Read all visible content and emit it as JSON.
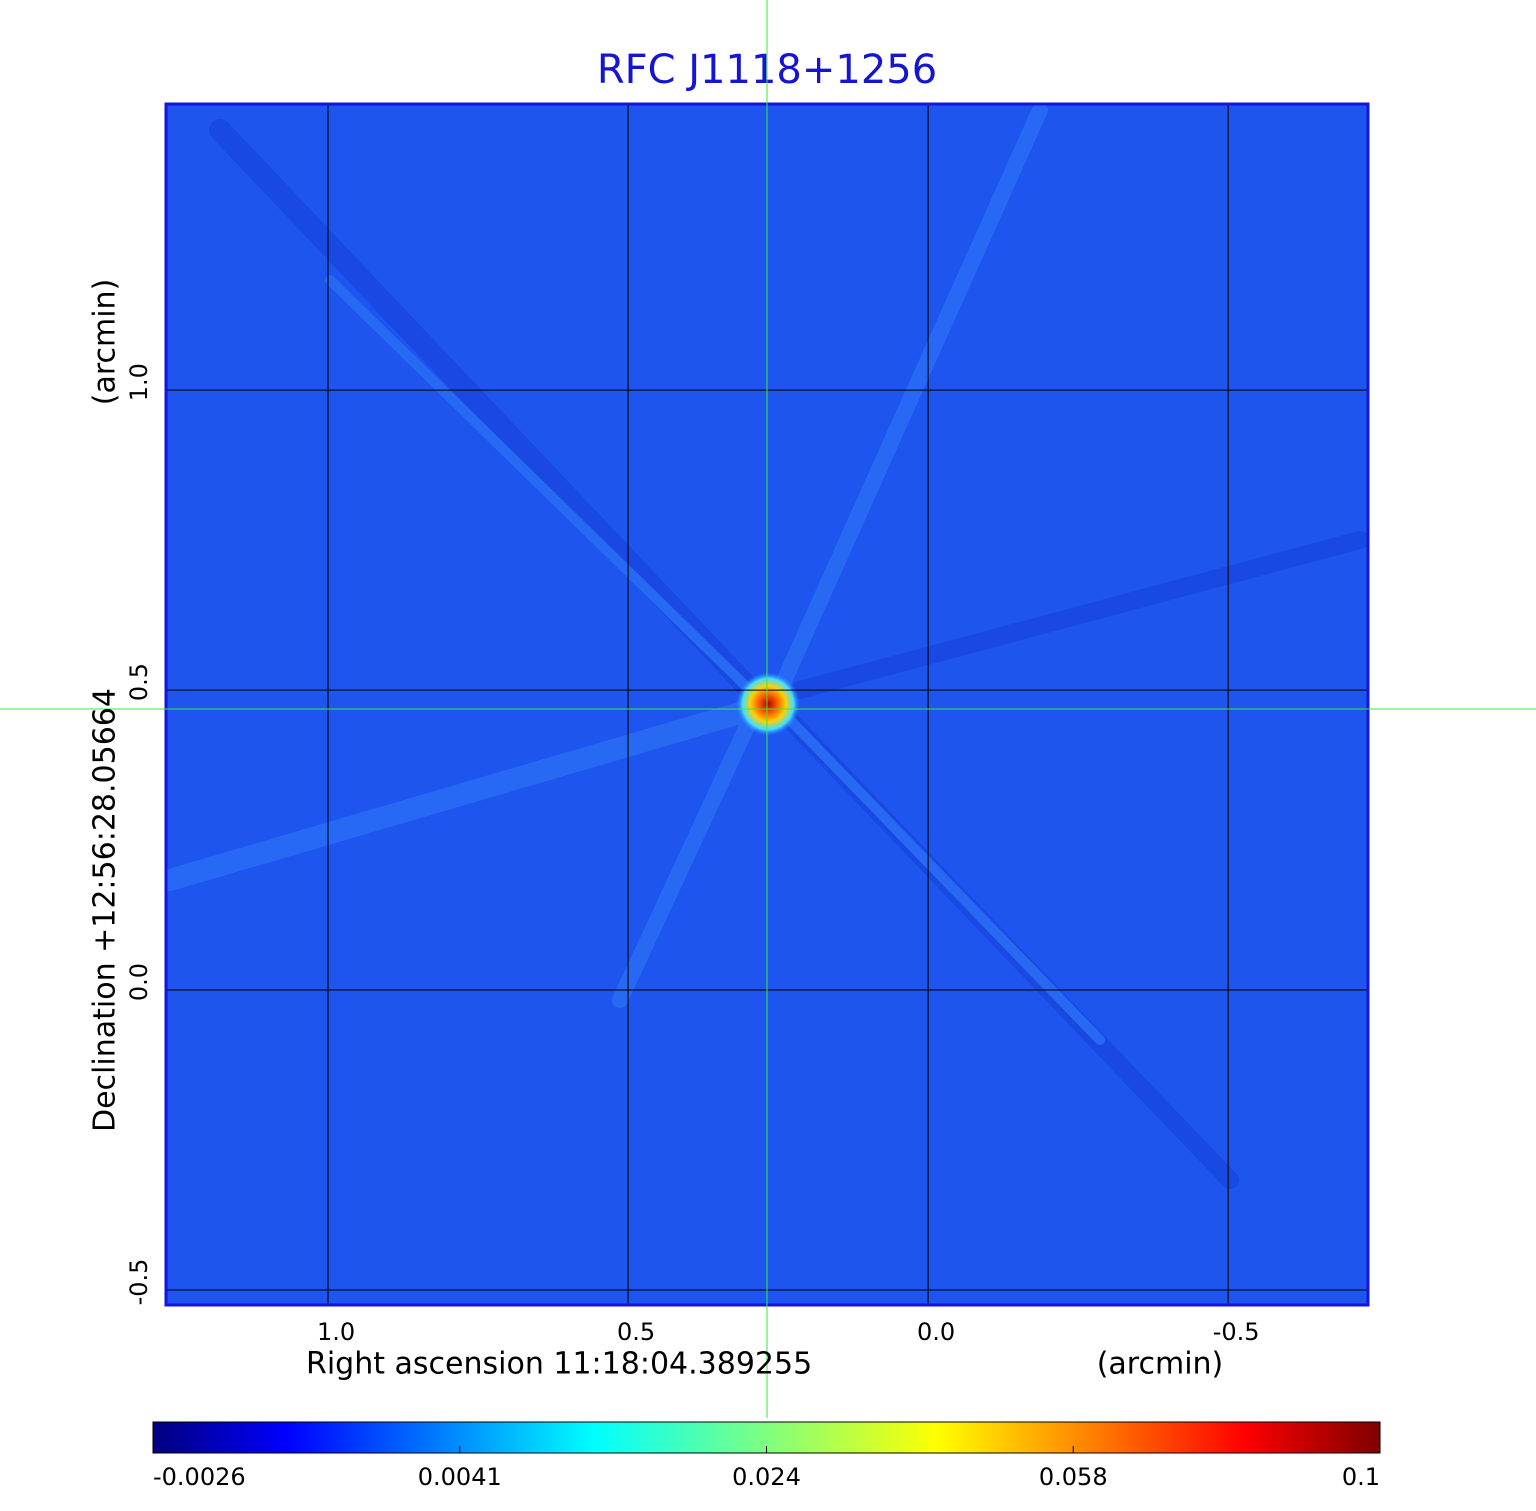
{
  "chart_data": {
    "type": "image",
    "title": "RFC J1118+1256",
    "x_label": "Right ascension  11:18:04.389255",
    "x_unit": "(arcmin)",
    "y_label": "Declination  +12:56:28.05664",
    "y_unit": "(arcmin)",
    "xlim": [
      1.27,
      -0.733
    ],
    "ylim": [
      -0.525,
      1.477
    ],
    "xticks": [
      {
        "value": 1,
        "label": "1.0"
      },
      0.5,
      {
        "value": 0,
        "label": "0.0"
      },
      -0.5
    ],
    "yticks": [
      -0.5,
      {
        "value": 0,
        "label": "0.0"
      },
      0.5,
      {
        "value": 1,
        "label": "1.0"
      }
    ],
    "grid": true,
    "colormap": "jet",
    "colorbar_ticks": [
      -0.0026,
      0.0041,
      0.024,
      0.058,
      0.1
    ]
  }
}
